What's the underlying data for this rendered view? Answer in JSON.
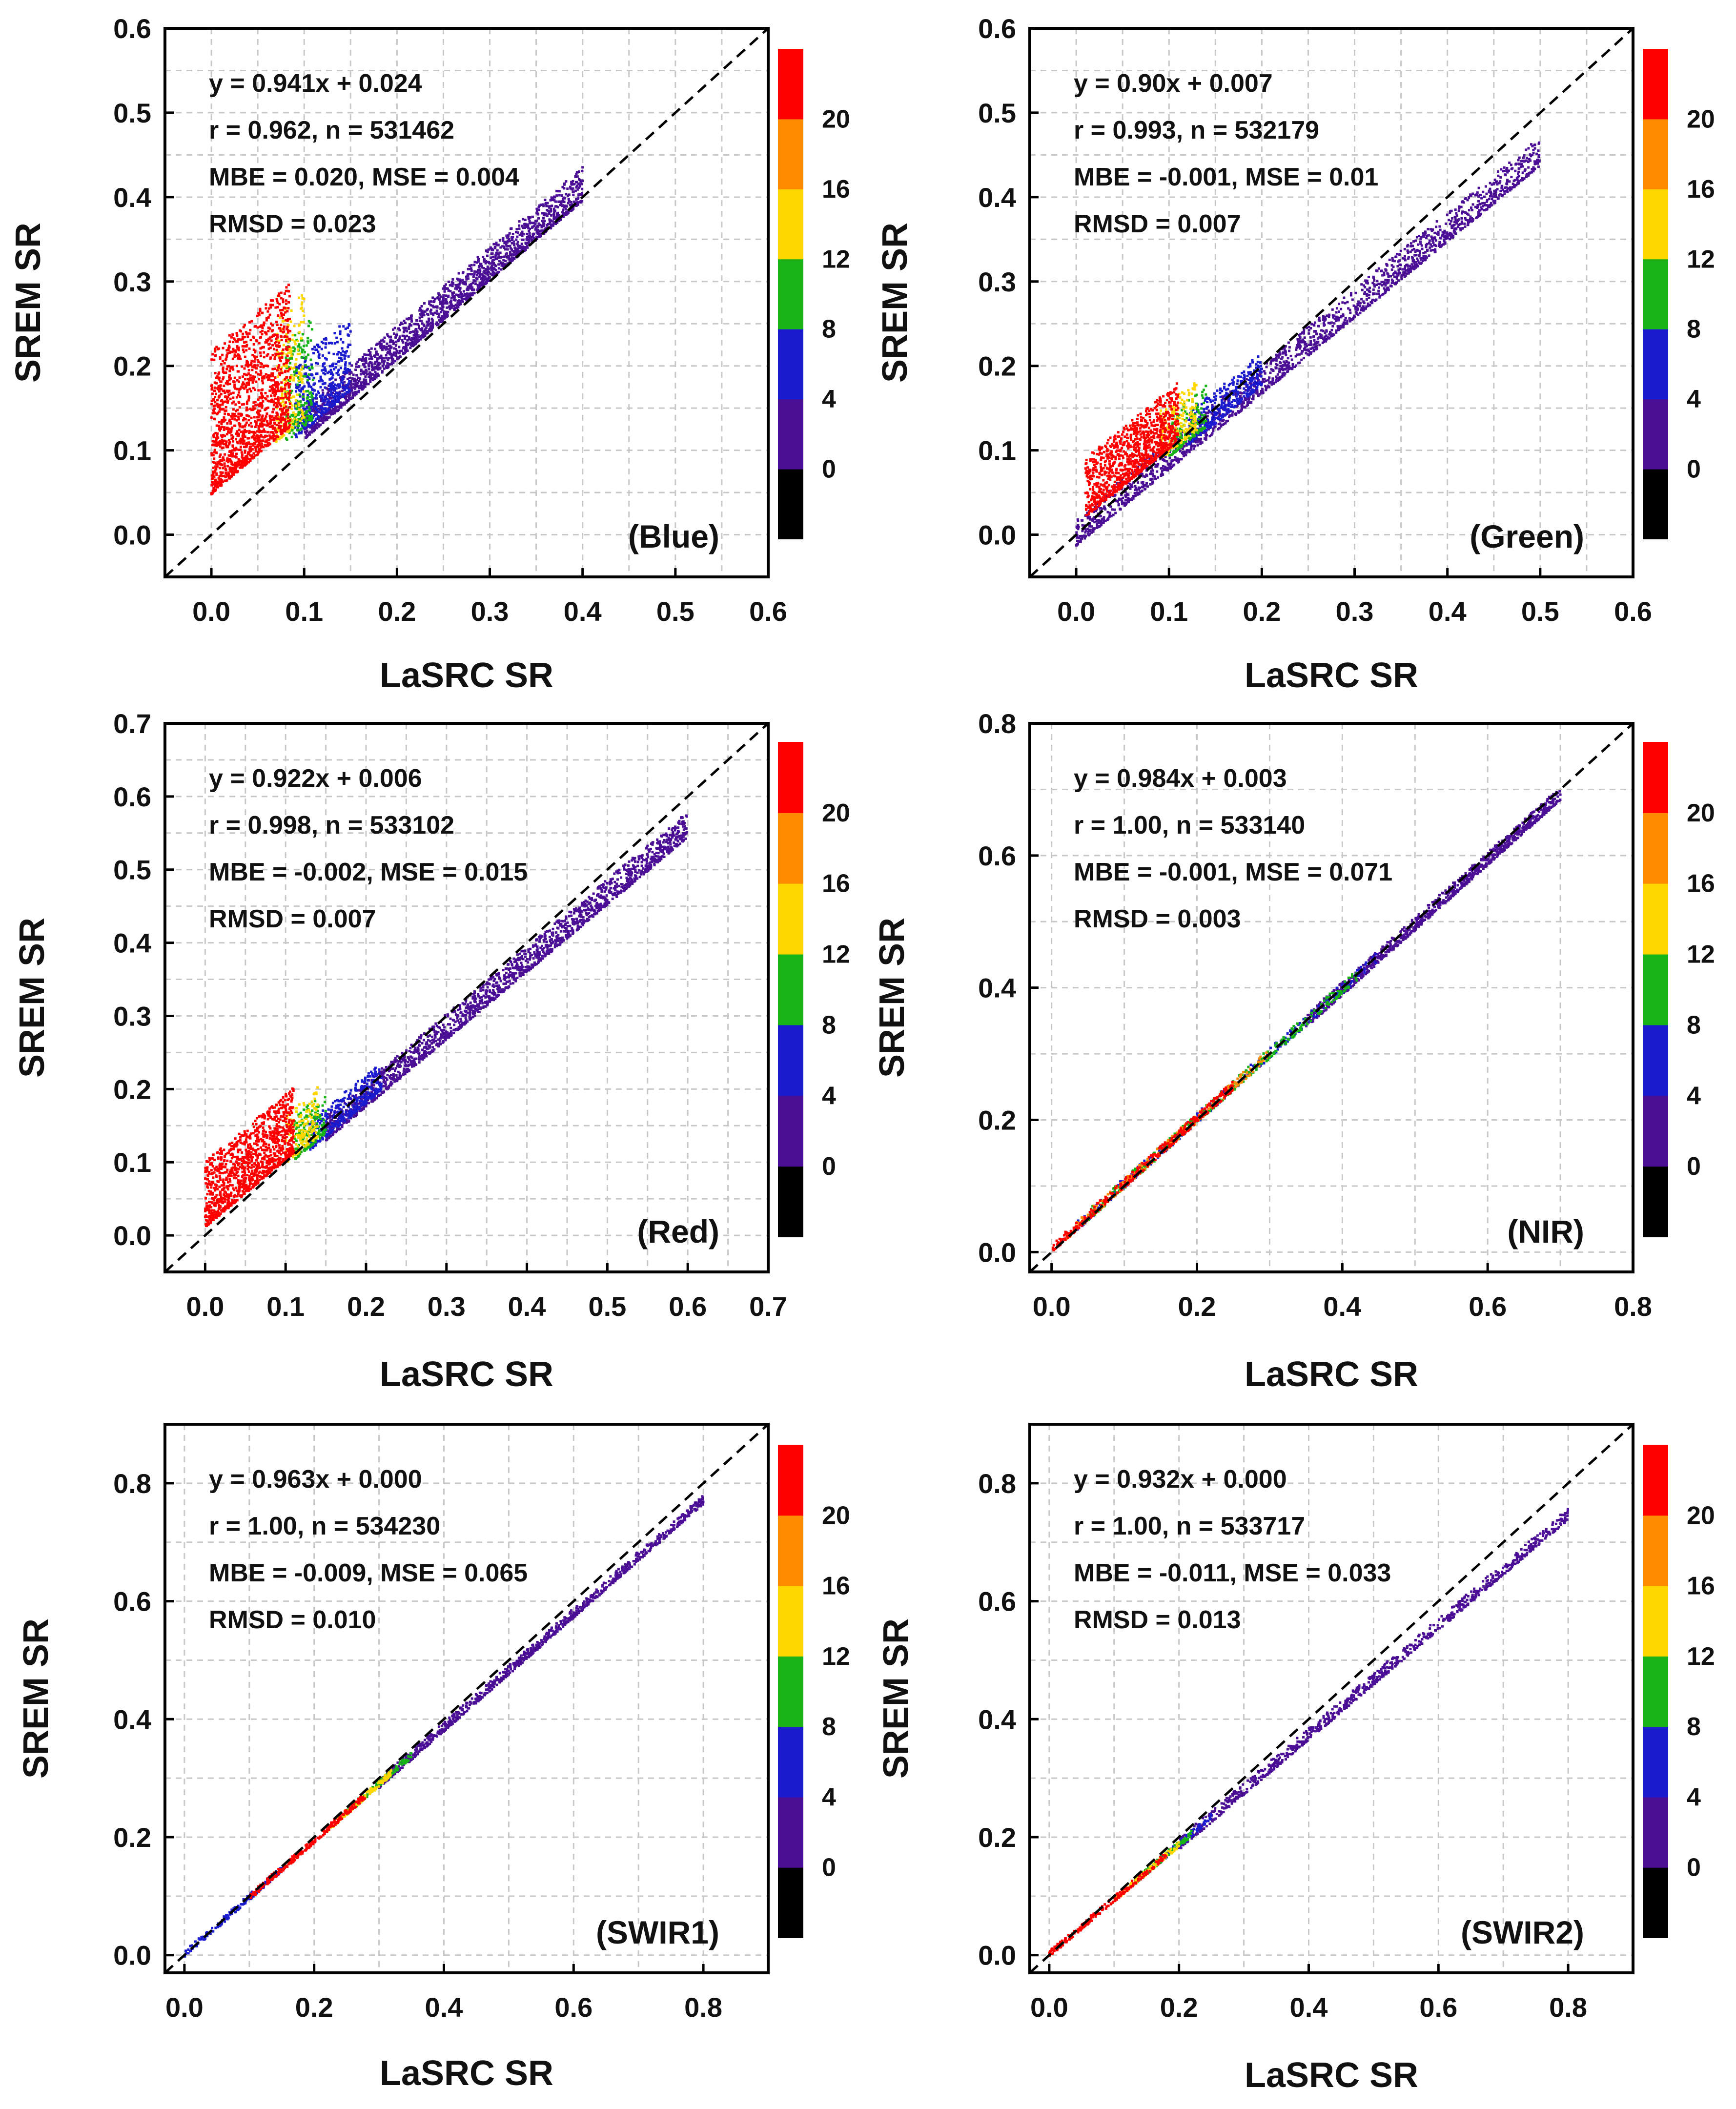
{
  "chart_data": [
    {
      "type": "scatter",
      "band_label": "(Blue)",
      "xlabel": "LaSRC SR",
      "ylabel": "SREM SR",
      "xlim": [
        -0.05,
        0.6
      ],
      "ylim": [
        -0.05,
        0.6
      ],
      "xticks": [
        "0.0",
        "0.1",
        "0.2",
        "0.3",
        "0.4",
        "0.5",
        "0.6"
      ],
      "xtick_values": [
        0,
        0.1,
        0.2,
        0.3,
        0.4,
        0.5,
        0.6
      ],
      "yticks": [
        "0.0",
        "0.1",
        "0.2",
        "0.3",
        "0.4",
        "0.5",
        "0.6"
      ],
      "ytick_values": [
        0,
        0.1,
        0.2,
        0.3,
        0.4,
        0.5,
        0.6
      ],
      "stats": [
        "y = 0.941x + 0.024",
        "r = 0.962, n = 531462",
        "MBE = 0.020, MSE = 0.004",
        "RMSD = 0.023"
      ],
      "fit": {
        "slope": 0.941,
        "intercept": 0.024
      },
      "xmax": 0.4,
      "colorbar": {
        "ticks": [
          "0",
          "4",
          "8",
          "12",
          "16",
          "20"
        ],
        "colors": [
          "#000000",
          "#4b0f96",
          "#1a1acf",
          "#17b317",
          "#ffd700",
          "#ff8c00",
          "#ff0000"
        ]
      },
      "density_clusters": [
        {
          "x": [
            0.0,
            0.085
          ],
          "ybase": 0.024,
          "yspread": 0.17,
          "color": "#ff0000",
          "count": 1400
        },
        {
          "x": [
            0.07,
            0.1
          ],
          "ybase": 0.02,
          "yspread": 0.15,
          "color": "#ffd700",
          "count": 220
        },
        {
          "x": [
            0.08,
            0.11
          ],
          "ybase": 0.01,
          "yspread": 0.12,
          "color": "#17b317",
          "count": 200
        },
        {
          "x": [
            0.09,
            0.15
          ],
          "ybase": 0.005,
          "yspread": 0.09,
          "color": "#1a1acf",
          "count": 420
        },
        {
          "x": [
            0.1,
            0.4
          ],
          "ybase": -0.005,
          "yspread": 0.04,
          "color": "#4b0f96",
          "count": 1800
        }
      ]
    },
    {
      "type": "scatter",
      "band_label": "(Green)",
      "xlabel": "LaSRC SR",
      "ylabel": "SREM SR",
      "xlim": [
        -0.05,
        0.6
      ],
      "ylim": [
        -0.05,
        0.6
      ],
      "xticks": [
        "0.0",
        "0.1",
        "0.2",
        "0.3",
        "0.4",
        "0.5",
        "0.6"
      ],
      "xtick_values": [
        0,
        0.1,
        0.2,
        0.3,
        0.4,
        0.5,
        0.6
      ],
      "yticks": [
        "0.0",
        "0.1",
        "0.2",
        "0.3",
        "0.4",
        "0.5",
        "0.6"
      ],
      "ytick_values": [
        0,
        0.1,
        0.2,
        0.3,
        0.4,
        0.5,
        0.6
      ],
      "stats": [
        "y = 0.90x + 0.007",
        "r = 0.993, n = 532179",
        "MBE = -0.001, MSE = 0.01",
        "RMSD = 0.007"
      ],
      "fit": {
        "slope": 0.9,
        "intercept": 0.007
      },
      "xmax": 0.5,
      "colorbar": {
        "ticks": [
          "0",
          "4",
          "8",
          "12",
          "16",
          "20"
        ],
        "colors": [
          "#000000",
          "#4b0f96",
          "#1a1acf",
          "#17b317",
          "#ffd700",
          "#ff8c00",
          "#ff0000"
        ]
      },
      "density_clusters": [
        {
          "x": [
            0.01,
            0.11
          ],
          "ybase": 0.005,
          "yspread": 0.07,
          "color": "#ff0000",
          "count": 1000
        },
        {
          "x": [
            0.09,
            0.13
          ],
          "ybase": 0.0,
          "yspread": 0.06,
          "color": "#ffd700",
          "count": 180
        },
        {
          "x": [
            0.1,
            0.14
          ],
          "ybase": -0.005,
          "yspread": 0.05,
          "color": "#17b317",
          "count": 150
        },
        {
          "x": [
            0.12,
            0.2
          ],
          "ybase": -0.01,
          "yspread": 0.04,
          "color": "#1a1acf",
          "count": 350
        },
        {
          "x": [
            0.0,
            0.5
          ],
          "ybase": -0.02,
          "yspread": 0.035,
          "color": "#4b0f96",
          "count": 1800
        }
      ]
    },
    {
      "type": "scatter",
      "band_label": "(Red)",
      "xlabel": "LaSRC SR",
      "ylabel": "SREM SR",
      "xlim": [
        -0.05,
        0.7
      ],
      "ylim": [
        -0.05,
        0.7
      ],
      "xticks": [
        "0.0",
        "0.1",
        "0.2",
        "0.3",
        "0.4",
        "0.5",
        "0.6",
        "0.7"
      ],
      "xtick_values": [
        0,
        0.1,
        0.2,
        0.3,
        0.4,
        0.5,
        0.6,
        0.7
      ],
      "yticks": [
        "0.0",
        "0.1",
        "0.2",
        "0.3",
        "0.4",
        "0.5",
        "0.6",
        "0.7"
      ],
      "ytick_values": [
        0,
        0.1,
        0.2,
        0.3,
        0.4,
        0.5,
        0.6,
        0.7
      ],
      "stats": [
        "y = 0.922x + 0.006",
        "r = 0.998, n = 533102",
        "MBE = -0.002, MSE = 0.015",
        "RMSD = 0.007"
      ],
      "fit": {
        "slope": 0.922,
        "intercept": 0.006
      },
      "xmax": 0.6,
      "colorbar": {
        "ticks": [
          "0",
          "4",
          "8",
          "12",
          "16",
          "20"
        ],
        "colors": [
          "#000000",
          "#4b0f96",
          "#1a1acf",
          "#17b317",
          "#ffd700",
          "#ff8c00",
          "#ff0000"
        ]
      },
      "density_clusters": [
        {
          "x": [
            0.0,
            0.11
          ],
          "ybase": 0.005,
          "yspread": 0.09,
          "color": "#ff0000",
          "count": 1100
        },
        {
          "x": [
            0.1,
            0.14
          ],
          "ybase": 0.0,
          "yspread": 0.07,
          "color": "#ffd700",
          "count": 160
        },
        {
          "x": [
            0.11,
            0.15
          ],
          "ybase": -0.005,
          "yspread": 0.06,
          "color": "#17b317",
          "count": 160
        },
        {
          "x": [
            0.13,
            0.22
          ],
          "ybase": -0.01,
          "yspread": 0.04,
          "color": "#1a1acf",
          "count": 350
        },
        {
          "x": [
            0.15,
            0.6
          ],
          "ybase": -0.015,
          "yspread": 0.035,
          "color": "#4b0f96",
          "count": 1800
        }
      ]
    },
    {
      "type": "scatter",
      "band_label": "(NIR)",
      "xlabel": "LaSRC SR",
      "ylabel": "SREM SR",
      "xlim": [
        -0.03,
        0.8
      ],
      "ylim": [
        -0.03,
        0.8
      ],
      "xticks": [
        "0.0",
        "0.2",
        "0.4",
        "0.6",
        "0.8"
      ],
      "xtick_values": [
        0,
        0.2,
        0.4,
        0.6,
        0.8
      ],
      "yticks": [
        "0.0",
        "0.2",
        "0.4",
        "0.6",
        "0.8"
      ],
      "ytick_values": [
        0,
        0.2,
        0.4,
        0.6,
        0.8
      ],
      "stats": [
        "y = 0.984x + 0.003",
        "r = 1.00, n = 533140",
        "MBE = -0.001, MSE = 0.071",
        "RMSD = 0.003"
      ],
      "fit": {
        "slope": 0.984,
        "intercept": 0.003
      },
      "xmax": 0.7,
      "colorbar": {
        "ticks": [
          "0",
          "4",
          "8",
          "12",
          "16",
          "20"
        ],
        "colors": [
          "#000000",
          "#4b0f96",
          "#1a1acf",
          "#17b317",
          "#ffd700",
          "#ff8c00",
          "#ff0000"
        ]
      },
      "density_clusters": [
        {
          "x": [
            0.0,
            0.25
          ],
          "ybase": -0.004,
          "yspread": 0.014,
          "color": "#ff0000",
          "count": 350
        },
        {
          "x": [
            0.02,
            0.3
          ],
          "ybase": -0.004,
          "yspread": 0.014,
          "color": "#ff8c00",
          "count": 250
        },
        {
          "x": [
            0.05,
            0.42
          ],
          "ybase": -0.005,
          "yspread": 0.016,
          "color": "#17b317",
          "count": 300
        },
        {
          "x": [
            0.03,
            0.45
          ],
          "ybase": -0.005,
          "yspread": 0.016,
          "color": "#1a1acf",
          "count": 250
        },
        {
          "x": [
            0.35,
            0.7
          ],
          "ybase": -0.008,
          "yspread": 0.02,
          "color": "#4b0f96",
          "count": 900
        }
      ]
    },
    {
      "type": "scatter",
      "band_label": "(SWIR1)",
      "xlabel": "LaSRC SR",
      "ylabel": "SREM SR",
      "xlim": [
        -0.03,
        0.9
      ],
      "ylim": [
        -0.03,
        0.9
      ],
      "xticks": [
        "0.0",
        "0.2",
        "0.4",
        "0.6",
        "0.8"
      ],
      "xtick_values": [
        0,
        0.2,
        0.4,
        0.6,
        0.8
      ],
      "yticks": [
        "0.0",
        "0.2",
        "0.4",
        "0.6",
        "0.8"
      ],
      "ytick_values": [
        0,
        0.2,
        0.4,
        0.6,
        0.8
      ],
      "stats": [
        "y = 0.963x + 0.000",
        "r = 1.00, n = 534230",
        "MBE = -0.009, MSE = 0.065",
        "RMSD = 0.010"
      ],
      "fit": {
        "slope": 0.963,
        "intercept": 0.0
      },
      "xmax": 0.8,
      "colorbar": {
        "ticks": [
          "0",
          "4",
          "8",
          "12",
          "16",
          "20"
        ],
        "colors": [
          "#000000",
          "#4b0f96",
          "#1a1acf",
          "#17b317",
          "#ffd700",
          "#ff8c00",
          "#ff0000"
        ]
      },
      "density_clusters": [
        {
          "x": [
            0.1,
            0.28
          ],
          "ybase": -0.003,
          "yspread": 0.01,
          "color": "#ff0000",
          "count": 250
        },
        {
          "x": [
            0.22,
            0.32
          ],
          "ybase": -0.003,
          "yspread": 0.01,
          "color": "#ffd700",
          "count": 120
        },
        {
          "x": [
            0.25,
            0.35
          ],
          "ybase": -0.003,
          "yspread": 0.01,
          "color": "#17b317",
          "count": 120
        },
        {
          "x": [
            0.0,
            0.15
          ],
          "ybase": -0.003,
          "yspread": 0.01,
          "color": "#1a1acf",
          "count": 150
        },
        {
          "x": [
            0.3,
            0.8
          ],
          "ybase": -0.006,
          "yspread": 0.016,
          "color": "#4b0f96",
          "count": 900
        }
      ]
    },
    {
      "type": "scatter",
      "band_label": "(SWIR2)",
      "xlabel": "LaSRC SR",
      "ylabel": "SREM SR",
      "xlim": [
        -0.03,
        0.9
      ],
      "ylim": [
        -0.03,
        0.9
      ],
      "xticks": [
        "0.0",
        "0.2",
        "0.4",
        "0.6",
        "0.8"
      ],
      "xtick_values": [
        0,
        0.2,
        0.4,
        0.6,
        0.8
      ],
      "yticks": [
        "0.0",
        "0.2",
        "0.4",
        "0.6",
        "0.8"
      ],
      "ytick_values": [
        0,
        0.2,
        0.4,
        0.6,
        0.8
      ],
      "stats": [
        "y = 0.932x + 0.000",
        "r = 1.00, n = 533717",
        "MBE = -0.011, MSE = 0.033",
        "RMSD = 0.013"
      ],
      "fit": {
        "slope": 0.932,
        "intercept": 0.0
      },
      "xmax": 0.8,
      "colorbar": {
        "ticks": [
          "0",
          "4",
          "8",
          "12",
          "16",
          "20"
        ],
        "colors": [
          "#000000",
          "#4b0f96",
          "#1a1acf",
          "#17b317",
          "#ffd700",
          "#ff8c00",
          "#ff0000"
        ]
      },
      "density_clusters": [
        {
          "x": [
            0.0,
            0.18
          ],
          "ybase": -0.003,
          "yspread": 0.01,
          "color": "#ff0000",
          "count": 200
        },
        {
          "x": [
            0.1,
            0.2
          ],
          "ybase": -0.003,
          "yspread": 0.01,
          "color": "#ffd700",
          "count": 110
        },
        {
          "x": [
            0.13,
            0.22
          ],
          "ybase": -0.003,
          "yspread": 0.01,
          "color": "#17b317",
          "count": 100
        },
        {
          "x": [
            0.15,
            0.25
          ],
          "ybase": -0.003,
          "yspread": 0.01,
          "color": "#1a1acf",
          "count": 100
        },
        {
          "x": [
            0.2,
            0.8
          ],
          "ybase": -0.008,
          "yspread": 0.02,
          "color": "#4b0f96",
          "count": 900
        }
      ]
    }
  ]
}
